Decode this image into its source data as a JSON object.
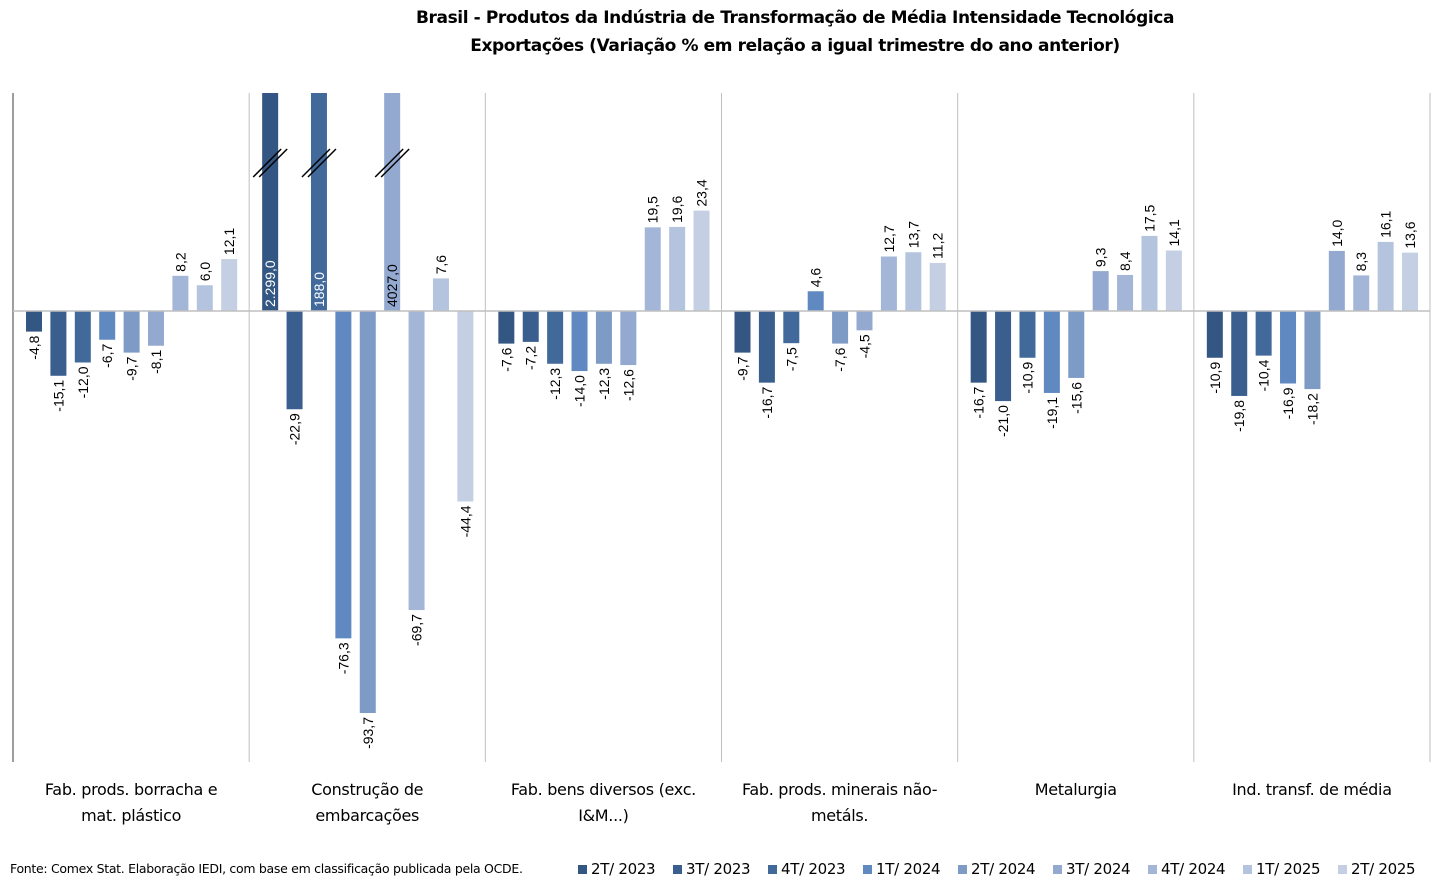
{
  "chart_data": {
    "type": "bar",
    "title": "Brasil - Produtos da Indústria de Transformação de Média Intensidade Tecnológica",
    "subtitle": "Exportações (Variação % em relação a igual trimestre do ano anterior)",
    "xlabel": "",
    "ylabel": "",
    "ylim": [
      -100,
      50
    ],
    "grid": false,
    "legend_position": "bottom-right",
    "categories": [
      [
        "Fab. prods. borracha e",
        "mat. plástico"
      ],
      [
        "Construção de",
        "embarcações"
      ],
      [
        "Fab. bens diversos (exc.",
        "I&M...)"
      ],
      [
        "Fab. prods. minerais não-",
        "metáls."
      ],
      [
        "Metalurgia"
      ],
      [
        "Ind. transf. de média"
      ]
    ],
    "series": [
      {
        "name": "2T/ 2023",
        "color": "#335682",
        "values": [
          -4.8,
          2299.0,
          -7.6,
          -9.7,
          -16.7,
          -10.9
        ],
        "labels": [
          "-4,8",
          "2.299,0",
          "-7,6",
          "-9,7",
          "-16,7",
          "-10,9"
        ]
      },
      {
        "name": "3T/ 2023",
        "color": "#3a5f8f",
        "values": [
          -15.1,
          -22.9,
          -7.2,
          -16.7,
          -21.0,
          -19.8
        ],
        "labels": [
          "-15,1",
          "-22,9",
          "-7,2",
          "-16,7",
          "-21,0",
          "-19,8"
        ]
      },
      {
        "name": "4T/ 2023",
        "color": "#416a9b",
        "values": [
          -12.0,
          188.0,
          -12.3,
          -7.5,
          -10.9,
          -10.4
        ],
        "labels": [
          "-12,0",
          "188,0",
          "-12,3",
          "-7,5",
          "-10,9",
          "-10,4"
        ]
      },
      {
        "name": "1T/ 2024",
        "color": "#5f89c0",
        "values": [
          -6.7,
          -76.3,
          -14.0,
          4.6,
          -19.1,
          -16.9
        ],
        "labels": [
          "-6,7",
          "-76,3",
          "-14,0",
          "4,6",
          "-19,1",
          "-16,9"
        ]
      },
      {
        "name": "2T/ 2024",
        "color": "#7e9bc6",
        "values": [
          -9.7,
          -93.7,
          -12.3,
          -7.6,
          -15.6,
          -18.2
        ],
        "labels": [
          "-9,7",
          "-93,7",
          "-12,3",
          "-7,6",
          "-15,6",
          "-18,2"
        ]
      },
      {
        "name": "3T/ 2024",
        "color": "#93a9d0",
        "values": [
          -8.1,
          4027.0,
          -12.6,
          -4.5,
          9.3,
          14.0
        ],
        "labels": [
          "-8,1",
          "4027,0",
          "-12,6",
          "-4,5",
          "9,3",
          "14,0"
        ]
      },
      {
        "name": "4T/ 2024",
        "color": "#a4b6d7",
        "values": [
          8.2,
          -69.7,
          19.5,
          12.7,
          8.4,
          8.3
        ],
        "labels": [
          "8,2",
          "-69,7",
          "19,5",
          "12,7",
          "8,4",
          "8,3"
        ]
      },
      {
        "name": "1T/ 2025",
        "color": "#b5c4de",
        "values": [
          6.0,
          7.6,
          19.6,
          13.7,
          17.5,
          16.1
        ],
        "labels": [
          "6,0",
          "7,6",
          "19,6",
          "13,7",
          "17,5",
          "16,1"
        ]
      },
      {
        "name": "2T/ 2025",
        "color": "#c4cfe4",
        "values": [
          12.1,
          -44.4,
          23.4,
          11.2,
          14.1,
          13.6
        ],
        "labels": [
          "12,1",
          "-44,4",
          "23,4",
          "11,2",
          "14,1",
          "13,6"
        ]
      }
    ],
    "broken_bars_note": "Values exceeding axis top are drawn truncated with break marks"
  },
  "source": "Fonte: Comex Stat. Elaboração IEDI, com base em classificação publicada pela OCDE."
}
